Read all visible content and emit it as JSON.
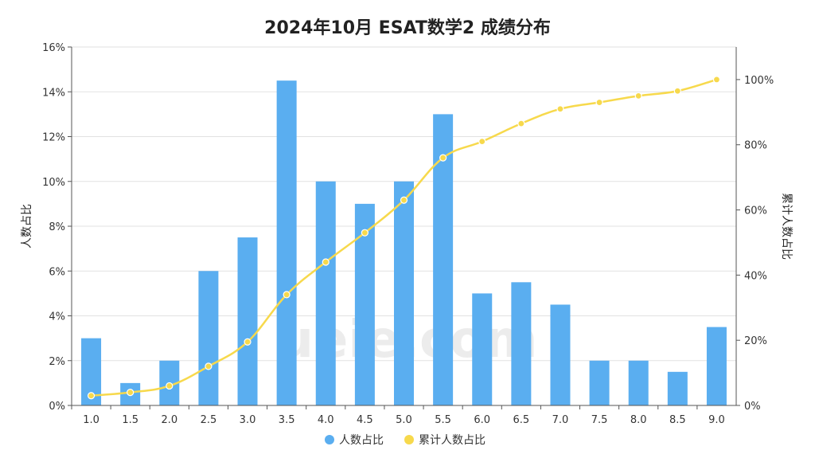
{
  "chart_data": {
    "type": "bar+line",
    "title": "2024年10月 ESAT数学2 成绩分布",
    "categories": [
      "1.0",
      "1.5",
      "2.0",
      "2.5",
      "3.0",
      "3.5",
      "4.0",
      "4.5",
      "5.0",
      "5.5",
      "6.0",
      "6.5",
      "7.0",
      "7.5",
      "8.0",
      "8.5",
      "9.0"
    ],
    "series": [
      {
        "name": "人数占比",
        "type": "bar",
        "axis": "left",
        "color": "#5aaef0",
        "values": [
          3,
          1,
          2,
          6,
          7.5,
          14.5,
          10,
          9,
          10,
          13,
          5,
          5.5,
          4.5,
          2,
          2,
          1.5,
          3.5
        ]
      },
      {
        "name": "累计人数占比",
        "type": "line",
        "axis": "right",
        "color": "#f7d94c",
        "values": [
          3,
          4,
          6,
          12,
          19.5,
          34,
          44,
          53,
          63,
          76,
          81,
          86.5,
          91,
          93,
          95,
          96.5,
          100
        ]
      }
    ],
    "ylabel": "人数占比",
    "y2label": "累计人数占比",
    "ylim": [
      0,
      16
    ],
    "y2lim": [
      0,
      110
    ],
    "yticks": [
      "0%",
      "2%",
      "4%",
      "6%",
      "8%",
      "10%",
      "12%",
      "14%",
      "16%"
    ],
    "y2ticks": [
      "0%",
      "20%",
      "40%",
      "60%",
      "80%",
      "100%"
    ],
    "grid": true,
    "legend": "bottom",
    "watermark": "ueie.com"
  }
}
